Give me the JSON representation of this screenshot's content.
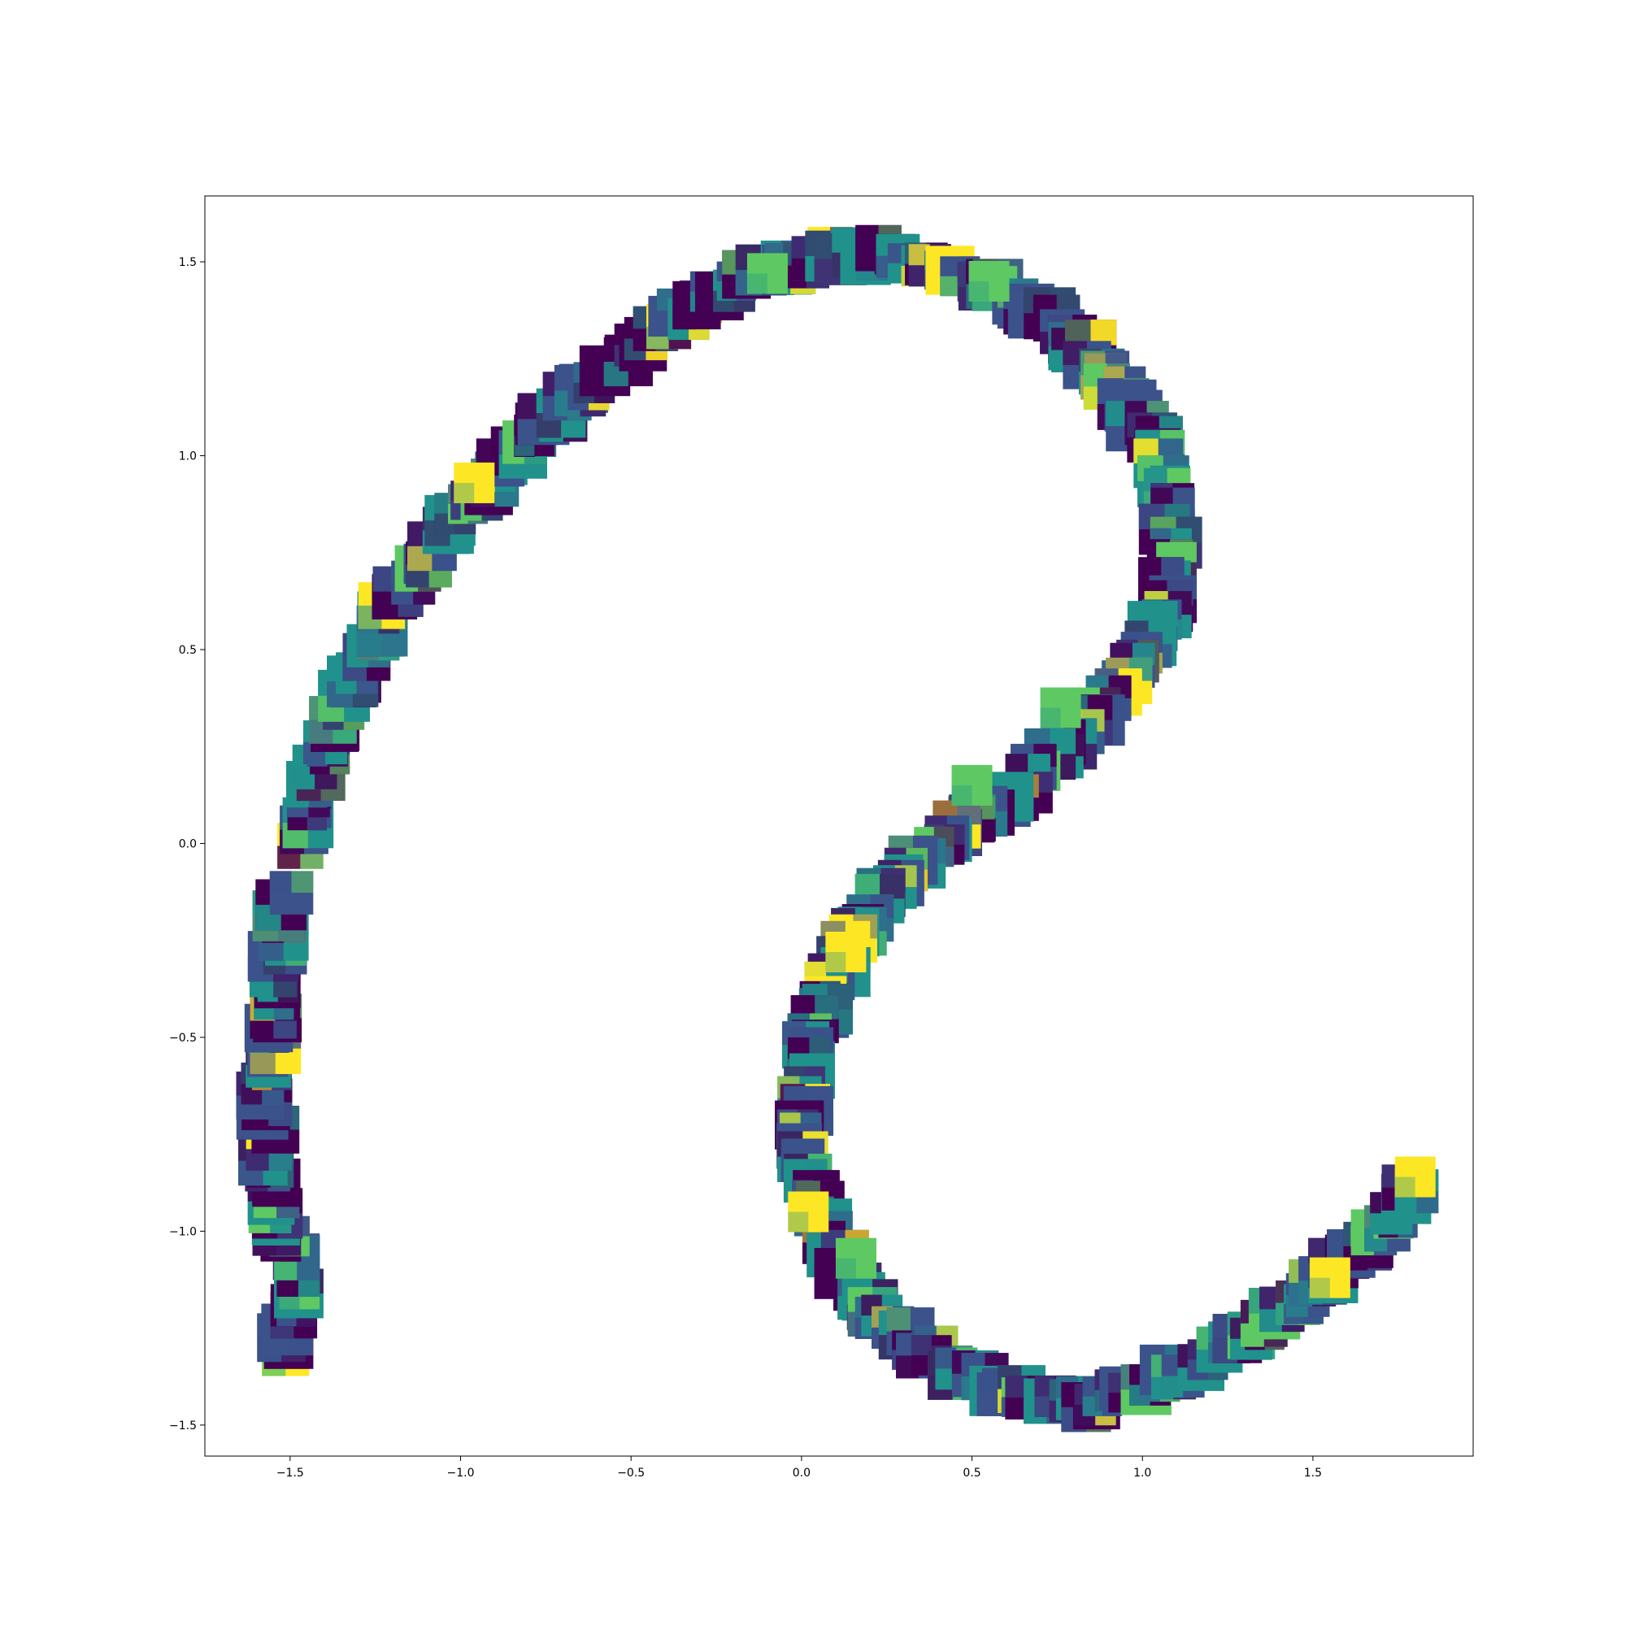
{
  "chart_data": {
    "type": "scatter",
    "marker": "image-thumbnail",
    "title": "",
    "xlabel": "",
    "ylabel": "",
    "xlim": [
      -1.75,
      1.97
    ],
    "ylim": [
      -1.58,
      1.67
    ],
    "xticks": [
      {
        "value": -1.5,
        "label": "−1.5"
      },
      {
        "value": -1.0,
        "label": "−1.0"
      },
      {
        "value": -0.5,
        "label": "−0.5"
      },
      {
        "value": 0.0,
        "label": "0.0"
      },
      {
        "value": 0.5,
        "label": "0.5"
      },
      {
        "value": 1.0,
        "label": "1.0"
      },
      {
        "value": 1.5,
        "label": "1.5"
      }
    ],
    "yticks": [
      {
        "value": -1.5,
        "label": "−1.5"
      },
      {
        "value": -1.0,
        "label": "−1.0"
      },
      {
        "value": -0.5,
        "label": "−0.5"
      },
      {
        "value": 0.0,
        "label": "0.0"
      },
      {
        "value": 0.5,
        "label": "0.5"
      },
      {
        "value": 1.0,
        "label": "1.0"
      },
      {
        "value": 1.5,
        "label": "1.5"
      }
    ],
    "grid": false,
    "legend": "none",
    "colormap": [
      "#440154",
      "#3b528b",
      "#21918c",
      "#5ec962",
      "#fde725"
    ],
    "curve_points": [
      [
        -1.52,
        -1.32
      ],
      [
        -1.47,
        -1.12
      ],
      [
        -1.54,
        -0.98
      ],
      [
        -1.56,
        -0.8
      ],
      [
        -1.57,
        -0.62
      ],
      [
        -1.55,
        -0.48
      ],
      [
        -1.54,
        -0.32
      ],
      [
        -1.52,
        -0.18
      ],
      [
        -1.46,
        0.05
      ],
      [
        -1.41,
        0.2
      ],
      [
        -1.35,
        0.35
      ],
      [
        -1.27,
        0.5
      ],
      [
        -1.19,
        0.64
      ],
      [
        -1.05,
        0.8
      ],
      [
        -0.92,
        0.94
      ],
      [
        -0.76,
        1.08
      ],
      [
        -0.6,
        1.2
      ],
      [
        -0.45,
        1.3
      ],
      [
        -0.27,
        1.41
      ],
      [
        -0.1,
        1.48
      ],
      [
        0.08,
        1.52
      ],
      [
        0.26,
        1.52
      ],
      [
        0.45,
        1.48
      ],
      [
        0.63,
        1.4
      ],
      [
        0.8,
        1.3
      ],
      [
        0.93,
        1.17
      ],
      [
        1.03,
        1.03
      ],
      [
        1.08,
        0.88
      ],
      [
        1.09,
        0.74
      ],
      [
        1.06,
        0.6
      ],
      [
        0.99,
        0.47
      ],
      [
        0.89,
        0.35
      ],
      [
        0.78,
        0.25
      ],
      [
        0.66,
        0.15
      ],
      [
        0.52,
        0.07
      ],
      [
        0.38,
        -0.02
      ],
      [
        0.26,
        -0.12
      ],
      [
        0.16,
        -0.24
      ],
      [
        0.09,
        -0.36
      ],
      [
        0.04,
        -0.48
      ],
      [
        0.01,
        -0.62
      ],
      [
        0.01,
        -0.76
      ],
      [
        0.03,
        -0.9
      ],
      [
        0.08,
        -1.03
      ],
      [
        0.16,
        -1.15
      ],
      [
        0.27,
        -1.25
      ],
      [
        0.4,
        -1.33
      ],
      [
        0.55,
        -1.4
      ],
      [
        0.7,
        -1.44
      ],
      [
        0.85,
        -1.44
      ],
      [
        1.0,
        -1.4
      ],
      [
        1.15,
        -1.35
      ],
      [
        1.3,
        -1.28
      ],
      [
        1.45,
        -1.19
      ],
      [
        1.58,
        -1.09
      ],
      [
        1.7,
        -0.99
      ],
      [
        1.8,
        -0.88
      ]
    ],
    "highlight_thumbnails": [
      [
        -0.96,
        0.93
      ],
      [
        0.76,
        0.35
      ],
      [
        0.13,
        -0.28
      ],
      [
        0.55,
        1.45
      ],
      [
        0.02,
        -0.95
      ],
      [
        0.16,
        -1.07
      ],
      [
        1.8,
        -0.86
      ],
      [
        0.5,
        0.15
      ],
      [
        1.55,
        -1.12
      ],
      [
        -0.1,
        1.47
      ]
    ]
  }
}
